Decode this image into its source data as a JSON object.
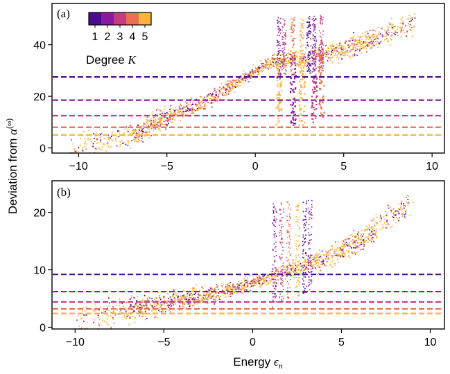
{
  "colors": {
    "K1": "#4b0c8f",
    "K2": "#8a1aa0",
    "K3": "#c33d80",
    "K4": "#ea6f52",
    "K5": "#fbb33a"
  },
  "y_axis_label": "Deviation from α^(∞)",
  "x_axis_label": "Energy ϵ_n",
  "legend": {
    "title": "Degree K",
    "ticks": [
      "1",
      "2",
      "3",
      "4",
      "5"
    ]
  },
  "chart_data": [
    {
      "type": "scatter",
      "panel": "(a)",
      "xlim": [
        -11.5,
        10.7
      ],
      "ylim": [
        -2,
        56
      ],
      "xticks": [
        -10,
        -5,
        0,
        5,
        10
      ],
      "xtick_labels": [
        "−10",
        "−5",
        "0",
        "5",
        "10"
      ],
      "yticks": [
        0,
        20,
        40
      ],
      "hlines": [
        {
          "degree": 1,
          "y": 27.5
        },
        {
          "degree": 2,
          "y": 18.5
        },
        {
          "degree": 3,
          "y": 12.5
        },
        {
          "degree": 4,
          "y": 8.0
        },
        {
          "degree": 5,
          "y": 5.0
        }
      ],
      "trend": [
        [
          -10.5,
          0.5
        ],
        [
          -9,
          2
        ],
        [
          -7.5,
          4
        ],
        [
          -6.5,
          6
        ],
        [
          -6,
          9
        ],
        [
          -5,
          12
        ],
        [
          -3.5,
          16
        ],
        [
          -2,
          22
        ],
        [
          -1,
          26
        ],
        [
          0,
          30
        ],
        [
          1,
          34
        ],
        [
          2,
          35
        ],
        [
          3,
          35.5
        ],
        [
          4,
          37
        ],
        [
          5,
          38.5
        ],
        [
          6,
          41
        ],
        [
          7,
          43
        ],
        [
          8.5,
          47
        ],
        [
          9,
          48
        ]
      ],
      "dips": [
        {
          "x": 1.3,
          "min": 8,
          "degree": 5
        },
        {
          "x": 2.1,
          "min": 9,
          "degree": 2
        },
        {
          "x": 2.6,
          "min": 9,
          "degree": 5
        },
        {
          "x": 3.3,
          "min": 10,
          "degree": 3
        },
        {
          "x": 3.7,
          "min": 12,
          "degree": 4
        }
      ]
    },
    {
      "type": "scatter",
      "panel": "(b)",
      "xlim": [
        -11.3,
        10.8
      ],
      "ylim": [
        -0.3,
        25.5
      ],
      "xticks": [
        -10,
        -5,
        0,
        5,
        10
      ],
      "xtick_labels": [
        "−10",
        "−5",
        "0",
        "5",
        "10"
      ],
      "yticks": [
        0,
        10,
        20
      ],
      "hlines": [
        {
          "degree": 1,
          "y": 9.2
        },
        {
          "degree": 2,
          "y": 6.2
        },
        {
          "degree": 3,
          "y": 4.4
        },
        {
          "degree": 4,
          "y": 3.2
        },
        {
          "degree": 5,
          "y": 2.4
        }
      ],
      "trend": [
        [
          -10,
          1
        ],
        [
          -9,
          2
        ],
        [
          -7,
          3
        ],
        [
          -5,
          4.2
        ],
        [
          -3,
          5.5
        ],
        [
          -1,
          7
        ],
        [
          0,
          7.8
        ],
        [
          1,
          8.8
        ],
        [
          2,
          10
        ],
        [
          3,
          10.8
        ],
        [
          4,
          12
        ],
        [
          5,
          13.5
        ],
        [
          6,
          15.5
        ],
        [
          7,
          17.5
        ],
        [
          8,
          20
        ],
        [
          9,
          22
        ]
      ],
      "dips": []
    }
  ]
}
